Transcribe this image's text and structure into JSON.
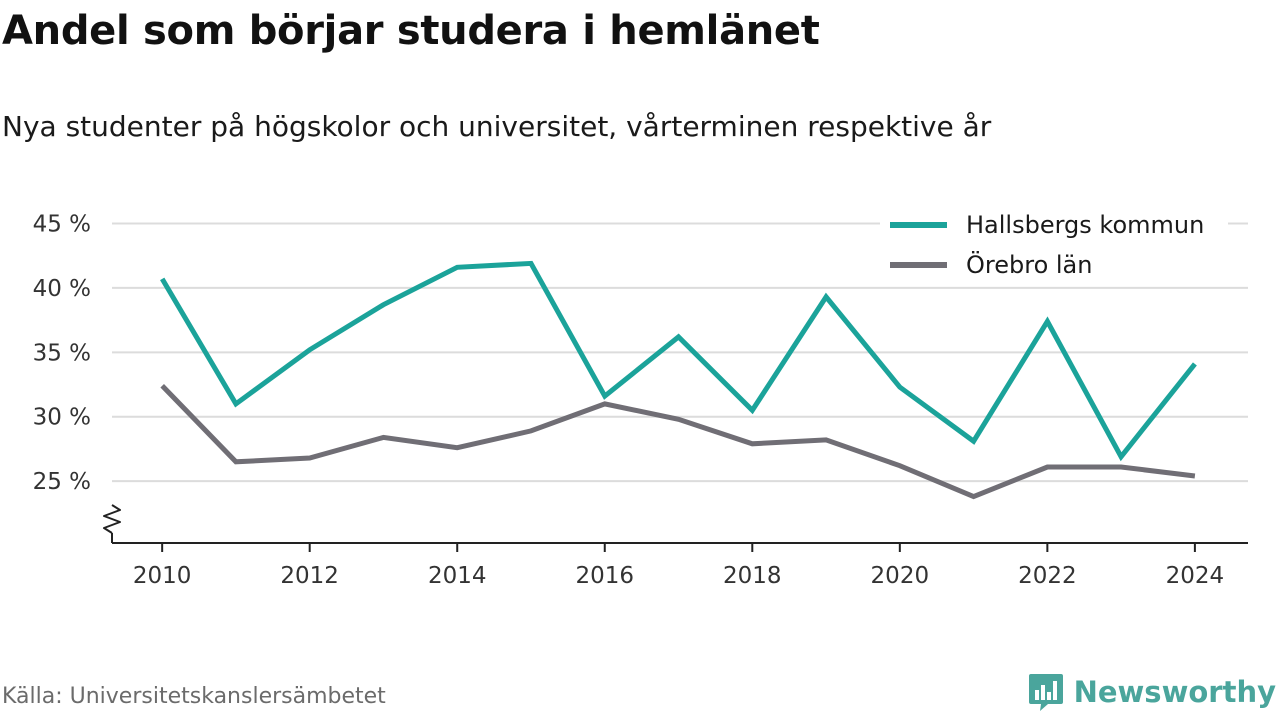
{
  "header": {
    "title": "Andel som börjar studera i hemlänet",
    "subtitle": "Nya studenter på högskolor och universitet, vårterminen respektive år"
  },
  "footer": {
    "source": "Källa: Universitetskanslersämbetet",
    "brand": "Newsworthy",
    "brand_icon": "bar-chart-speech-bubble-icon",
    "brand_color": "#4aa59c"
  },
  "chart_data": {
    "type": "line",
    "x": [
      2010,
      2011,
      2012,
      2013,
      2014,
      2015,
      2016,
      2017,
      2018,
      2019,
      2020,
      2021,
      2022,
      2023,
      2024
    ],
    "series": [
      {
        "name": "Hallsbergs kommun",
        "color": "#1ba39a",
        "values": [
          40.7,
          31.0,
          35.2,
          38.7,
          41.6,
          41.9,
          31.6,
          36.2,
          30.5,
          39.3,
          32.3,
          28.1,
          37.4,
          26.9,
          34.1
        ]
      },
      {
        "name": "Örebro län",
        "color": "#706e75",
        "values": [
          32.4,
          26.5,
          26.8,
          28.4,
          27.6,
          28.9,
          31.0,
          29.8,
          27.9,
          28.2,
          26.2,
          23.8,
          26.1,
          26.1,
          25.4
        ]
      }
    ],
    "y_ticks": [
      25,
      30,
      35,
      40,
      45
    ],
    "y_tick_labels": [
      "25 %",
      "30 %",
      "35 %",
      "40 %",
      "45 %"
    ],
    "x_ticks": [
      2010,
      2012,
      2014,
      2016,
      2018,
      2020,
      2022,
      2024
    ],
    "x_tick_labels": [
      "2010",
      "2012",
      "2014",
      "2016",
      "2018",
      "2020",
      "2022",
      "2024"
    ],
    "ylim": [
      20.2,
      45
    ],
    "xlim": [
      2009.32,
      2024.72
    ],
    "y_axis_break": true,
    "grid": "horizontal",
    "legend_position": "top-right",
    "xlabel": "",
    "ylabel": ""
  }
}
